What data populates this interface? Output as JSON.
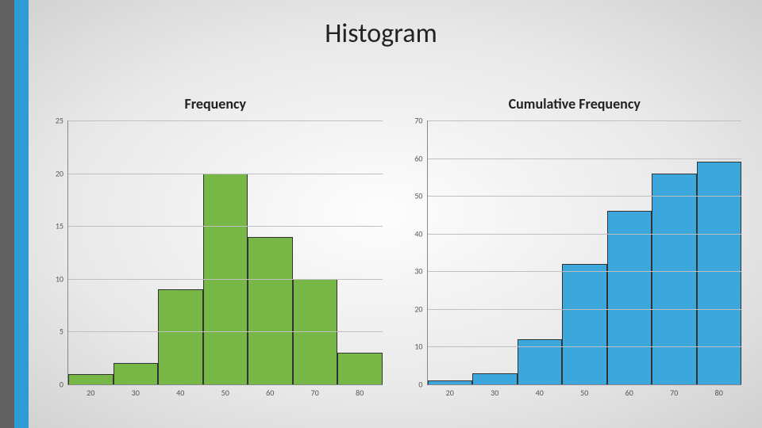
{
  "page": {
    "title": "Histogram",
    "title_fontsize": 34,
    "background_gradient": [
      "#fdfdfd",
      "#e8e8e8",
      "#d0d0d0"
    ],
    "side_stripe_colors": [
      "#606060",
      "#2e9bd6"
    ]
  },
  "frequency_chart": {
    "type": "histogram",
    "title": "Frequency",
    "title_fontsize": 18,
    "categories": [
      "20",
      "30",
      "40",
      "50",
      "60",
      "70",
      "80"
    ],
    "values": [
      1,
      2,
      9,
      20,
      14,
      10,
      3
    ],
    "bar_color": "#77b745",
    "bar_border_color": "#333333",
    "ylim": [
      0,
      25
    ],
    "ytick_step": 5,
    "y_ticks": [
      "0",
      "5",
      "10",
      "15",
      "20",
      "25"
    ],
    "grid_color": "#bfbfbf",
    "axis_color": "#888888",
    "label_fontsize": 10,
    "bar_width": 1.0
  },
  "cumulative_chart": {
    "type": "histogram",
    "title": "Cumulative Frequency",
    "title_fontsize": 18,
    "categories": [
      "20",
      "30",
      "40",
      "50",
      "60",
      "70",
      "80"
    ],
    "values": [
      1,
      3,
      12,
      32,
      46,
      56,
      59
    ],
    "bar_color": "#3ba7dd",
    "bar_border_color": "#333333",
    "ylim": [
      0,
      70
    ],
    "ytick_step": 10,
    "y_ticks": [
      "0",
      "10",
      "20",
      "30",
      "40",
      "50",
      "60",
      "70"
    ],
    "grid_color": "#bfbfbf",
    "axis_color": "#888888",
    "label_fontsize": 10,
    "bar_width": 1.0
  }
}
